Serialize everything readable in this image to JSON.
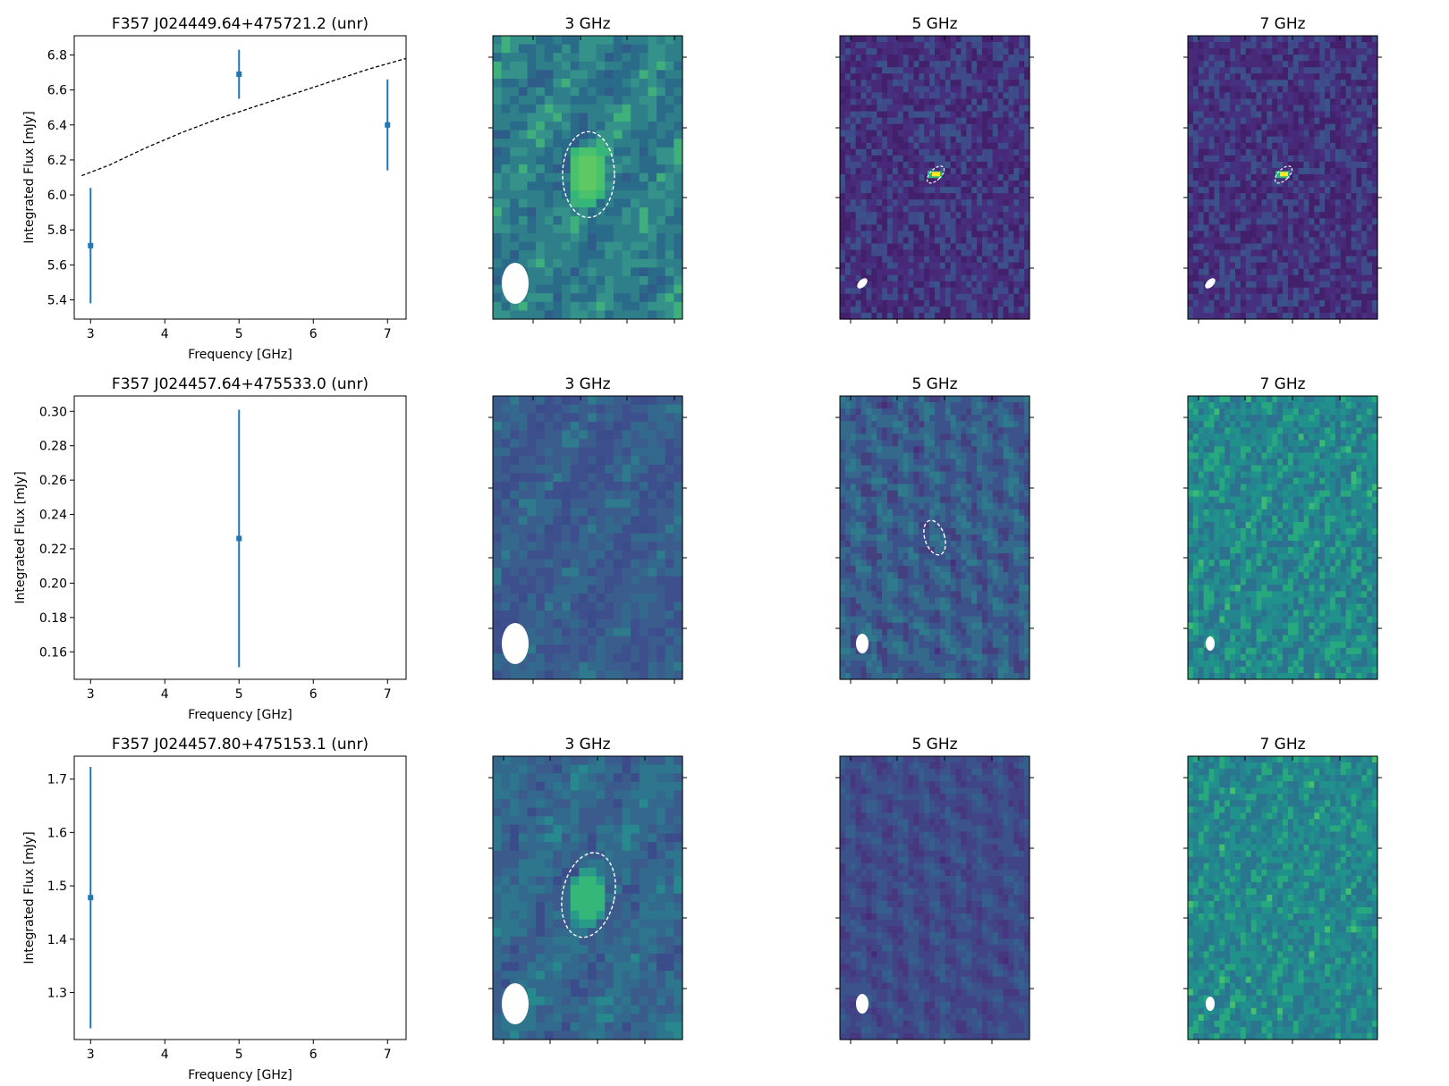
{
  "chart_data": [
    {
      "type": "scatter",
      "title": "F357 J024449.64+475721.2 (unr)",
      "xlabel": "Frequency [GHz]",
      "ylabel": "Integrated Flux [mJy]",
      "xlim": [
        2.78,
        7.25
      ],
      "ylim": [
        5.29,
        6.91
      ],
      "xticks": [
        3,
        4,
        5,
        6,
        7
      ],
      "yticks": [
        5.4,
        5.6,
        5.8,
        6.0,
        6.2,
        6.4,
        6.6,
        6.8
      ],
      "ytick_decimals": 1,
      "points": [
        {
          "x": 3,
          "y": 5.71,
          "err": 0.33
        },
        {
          "x": 5,
          "y": 6.69,
          "err": 0.14
        },
        {
          "x": 7,
          "y": 6.4,
          "err": 0.26
        }
      ],
      "fit": {
        "style": "dashed",
        "x": [
          2.88,
          3.25,
          3.75,
          4.25,
          4.75,
          5.25,
          5.75,
          6.25,
          6.75,
          7.25
        ],
        "y": [
          6.11,
          6.17,
          6.27,
          6.36,
          6.44,
          6.51,
          6.58,
          6.65,
          6.72,
          6.78
        ]
      },
      "panels": [
        {
          "title": "3 GHz",
          "source": "ellipse",
          "beam": "large-round",
          "style": "coarse",
          "palette": [
            "#2f5c88",
            "#2a6b8a",
            "#2e7f8a",
            "#35928a",
            "#3fb07c"
          ],
          "grid": [
            22,
            33
          ]
        },
        {
          "title": "5 GHz",
          "source": "compact-bright",
          "beam": "small-tilted",
          "style": "noise-dark",
          "palette": [
            "#43206b",
            "#482878",
            "#45317f",
            "#3e4a89",
            "#3b528b"
          ],
          "grid": [
            36,
            45
          ]
        },
        {
          "title": "7 GHz",
          "source": "compact-bright",
          "beam": "small-tilted",
          "style": "noise-dark",
          "palette": [
            "#43206b",
            "#482878",
            "#45317f",
            "#3e4a89",
            "#3b528b"
          ],
          "grid": [
            36,
            45
          ]
        }
      ]
    },
    {
      "type": "scatter",
      "title": "F357 J024457.64+475533.0 (unr)",
      "xlabel": "Frequency [GHz]",
      "ylabel": "Integrated Flux [mJy]",
      "xlim": [
        2.78,
        7.25
      ],
      "ylim": [
        0.144,
        0.309
      ],
      "xticks": [
        3,
        4,
        5,
        6,
        7
      ],
      "yticks": [
        0.16,
        0.18,
        0.2,
        0.22,
        0.24,
        0.26,
        0.28,
        0.3
      ],
      "ytick_decimals": 2,
      "points": [
        {
          "x": 5,
          "y": 0.226,
          "err": 0.075
        }
      ],
      "panels": [
        {
          "title": "3 GHz",
          "source": "none",
          "beam": "large-round",
          "style": "coarse",
          "palette": [
            "#3b4c8a",
            "#3d4f8c",
            "#3a5d8d",
            "#33698d",
            "#2f7a8d"
          ],
          "grid": [
            22,
            33
          ]
        },
        {
          "title": "5 GHz",
          "source": "ellipse-small",
          "beam": "medium-round",
          "style": "blotchy",
          "palette": [
            "#472f7d",
            "#44407f",
            "#3b528b",
            "#35698c",
            "#2f7a8d"
          ],
          "grid": [
            36,
            45
          ]
        },
        {
          "title": "7 GHz",
          "source": "none",
          "beam": "small-round",
          "style": "noise-bright",
          "palette": [
            "#2c728e",
            "#25858e",
            "#21918c",
            "#28a87f",
            "#3aba76"
          ],
          "grid": [
            36,
            45
          ]
        }
      ]
    },
    {
      "type": "scatter",
      "title": "F357 J024457.80+475153.1 (unr)",
      "xlabel": "Frequency [GHz]",
      "ylabel": "Integrated Flux [mJy]",
      "xlim": [
        2.78,
        7.25
      ],
      "ylim": [
        1.212,
        1.743
      ],
      "xticks": [
        3,
        4,
        5,
        6,
        7
      ],
      "yticks": [
        1.3,
        1.4,
        1.5,
        1.6,
        1.7
      ],
      "ytick_decimals": 1,
      "points": [
        {
          "x": 3,
          "y": 1.478,
          "err": 0.245
        }
      ],
      "panels": [
        {
          "title": "3 GHz",
          "source": "ellipse",
          "beam": "large-round",
          "style": "coarse",
          "palette": [
            "#3b4c8a",
            "#3a5b8c",
            "#33698d",
            "#2e768e",
            "#27898e"
          ],
          "grid": [
            22,
            33
          ]
        },
        {
          "title": "5 GHz",
          "source": "none",
          "beam": "medium-round",
          "style": "blotchy",
          "palette": [
            "#472a7a",
            "#46377f",
            "#414487",
            "#3b528b",
            "#355f8d"
          ],
          "grid": [
            36,
            45
          ]
        },
        {
          "title": "7 GHz",
          "source": "none",
          "beam": "small-round",
          "style": "noise-bright",
          "palette": [
            "#2a768e",
            "#25858e",
            "#21918c",
            "#28a87f",
            "#44bf70"
          ],
          "grid": [
            36,
            45
          ]
        }
      ]
    }
  ]
}
